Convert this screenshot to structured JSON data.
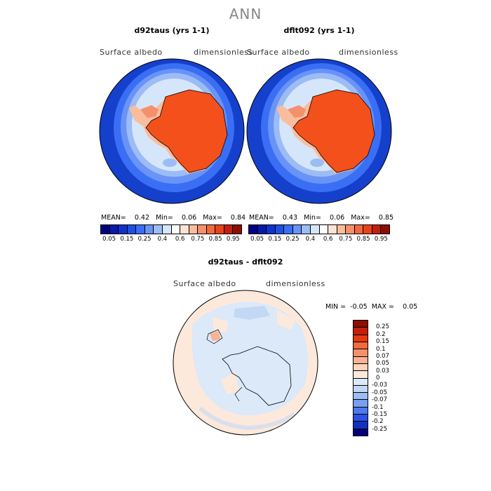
{
  "header": {
    "title": "ANN"
  },
  "panels": [
    {
      "title": "d92taus (yrs 1-1)",
      "field_label": "Surface albedo",
      "units_label": "dimensionless",
      "stats": {
        "mean_label": "MEAN=",
        "mean": "0.42",
        "min_label": "Min=",
        "min": "0.06",
        "max_label": "Max=",
        "max": "0.84"
      }
    },
    {
      "title": "dflt092 (yrs 1-1)",
      "field_label": "Surface albedo",
      "units_label": "dimensionless",
      "stats": {
        "mean_label": "MEAN=",
        "mean": "0.43",
        "min_label": "Min=",
        "min": "0.06",
        "max_label": "Max=",
        "max": "0.85"
      }
    }
  ],
  "colorbar": {
    "colors": [
      "#000080",
      "#0a1aa8",
      "#0f33cc",
      "#1f50e6",
      "#3a6ef5",
      "#6a93f7",
      "#9cbcf6",
      "#d6e6fa",
      "#ffffff",
      "#fde3d3",
      "#f9bd9e",
      "#f4906c",
      "#f06a40",
      "#e8431a",
      "#c2200a",
      "#8e0d00"
    ],
    "tick_labels": [
      "0.05",
      "0.15",
      "0.25",
      "0.4",
      "0.6",
      "0.75",
      "0.85",
      "0.95"
    ]
  },
  "diff_panel": {
    "title": "d92taus - dflt092",
    "field_label": "Surface albedo",
    "units_label": "dimensionless",
    "stats": {
      "min_label": "MIN =",
      "min": "-0.05",
      "max_label": "MAX =",
      "max": "0.05"
    },
    "colorbar": {
      "colors": [
        "#8e0d00",
        "#c2200a",
        "#e33a12",
        "#f06a40",
        "#f4906c",
        "#f9b393",
        "#fdd3bc",
        "#fde9dc",
        "#dbe9f8",
        "#c3d8f5",
        "#9dbcf2",
        "#7a9ef0",
        "#4f7aee",
        "#2a52e6",
        "#1232bb",
        "#00007a"
      ],
      "tick_labels": [
        "0.25",
        "0.2",
        "0.15",
        "0.1",
        "0.07",
        "0.05",
        "0.03",
        "0",
        "-0.03",
        "-0.05",
        "-0.07",
        "-0.1",
        "-0.15",
        "-0.2",
        "-0.25"
      ]
    }
  }
}
